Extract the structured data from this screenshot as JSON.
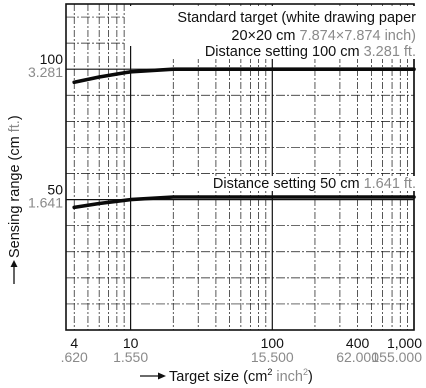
{
  "chart_data": {
    "type": "line",
    "x_scale": "log",
    "y_scale": "linear",
    "xlim": [
      3.5,
      1000
    ],
    "ylim": [
      0,
      125
    ],
    "grid": true,
    "xlabel_prefix": "Target size (cm",
    "xlabel_sup1": "2",
    "xlabel_unit2": " inch",
    "xlabel_sup2": "2",
    "xlabel_suffix": ")",
    "ylabel_main": "Sensing range (cm ",
    "ylabel_unit2": "ft.",
    "ylabel_suffix": ")",
    "x_ticks": [
      {
        "value": 4,
        "label": "4",
        "label2": ".620"
      },
      {
        "value": 10,
        "label": "10",
        "label2": "1.550"
      },
      {
        "value": 100,
        "label": "100",
        "label2": "15.500"
      },
      {
        "value": 400,
        "label": "400",
        "label2": "62.000"
      },
      {
        "value": 1000,
        "label": "1,000",
        "label2": "155.000"
      }
    ],
    "y_ticks": [
      {
        "value": 100,
        "label": "100",
        "label2": "3.281"
      },
      {
        "value": 50,
        "label": "50",
        "label2": "1.641"
      }
    ],
    "annotation": {
      "line1": "Standard target (white drawing paper",
      "line2_main": "20×20 cm ",
      "line2_alt": "7.874×7.874 inch)"
    },
    "series": [
      {
        "name": "Distance setting 100 cm",
        "name_alt": "3.281 ft.",
        "x": [
          4,
          6,
          10,
          20,
          40,
          100,
          400,
          1000
        ],
        "y": [
          95,
          97,
          99,
          100,
          100,
          100,
          100,
          100
        ]
      },
      {
        "name": "Distance setting 50 cm",
        "name_alt": "1.641 ft.",
        "x": [
          4,
          6,
          10,
          20,
          40,
          100,
          400,
          1000
        ],
        "y": [
          47,
          48.5,
          50,
          51,
          51,
          51,
          51,
          51
        ]
      }
    ]
  }
}
